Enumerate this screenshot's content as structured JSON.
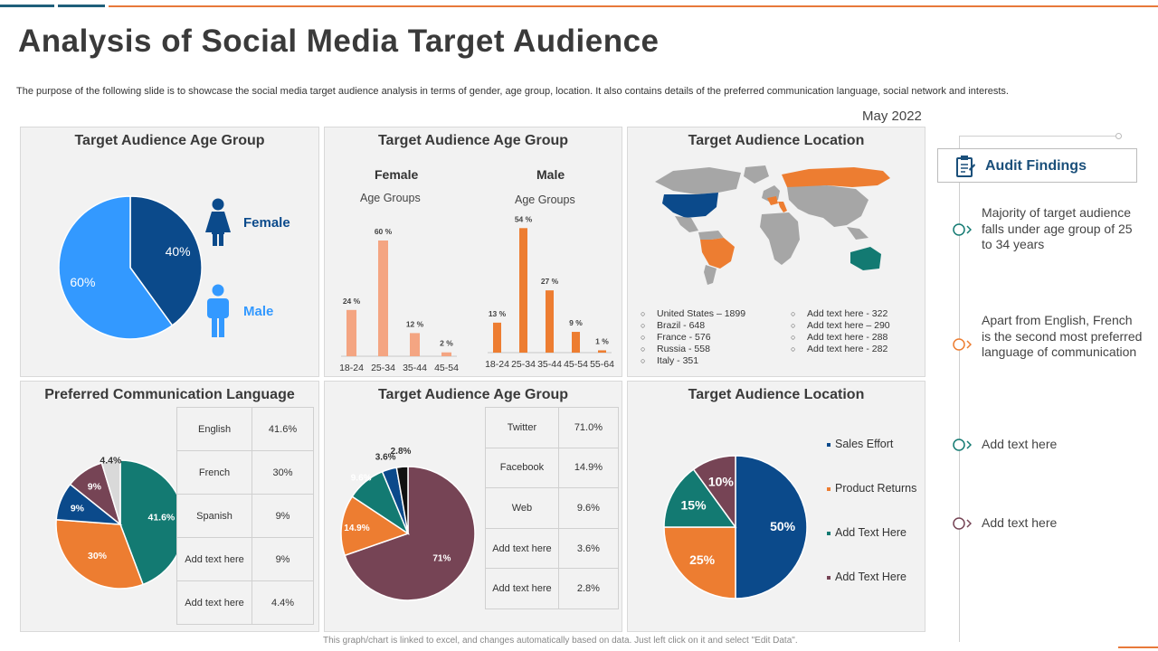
{
  "title": "Analysis of Social Media Target Audience",
  "subtitle": "The purpose of the following slide is to showcase the social media target audience analysis in terms of gender, age group, location. It also contains details of the preferred communication language, social network and interests.",
  "date": "May 2022",
  "footer": "This graph/chart is linked to excel, and changes automatically based on data. Just left click on it and select \"Edit Data\".",
  "colors": {
    "navy": "#0b4a8b",
    "blue": "#3399ff",
    "orange": "#ed7d31",
    "peach": "#f4a582",
    "teal": "#137a72",
    "plum": "#764455",
    "grey": "#d9d9d9",
    "black": "#111111",
    "mapgrey": "#a6a6a6"
  },
  "panels": {
    "gender": {
      "title": "Target Audience Age Group",
      "legend_female": "Female",
      "legend_male": "Male"
    },
    "age": {
      "title": "Target Audience Age Group",
      "female_title": "Female",
      "male_title": "Male",
      "female_sub": "Age Groups",
      "male_sub": "Age Groups"
    },
    "location": {
      "title": "Target Audience Location",
      "col1": [
        "United States – 1899",
        "Brazil - 648",
        "France - 576",
        "Russia - 558",
        "Italy - 351"
      ],
      "col2": [
        "Add text here - 322",
        "Add text here – 290",
        "Add text here - 288",
        "Add text here - 282"
      ]
    },
    "language": {
      "title": "Preferred Communication Language",
      "rows": [
        {
          "label": "English",
          "value": "41.6%"
        },
        {
          "label": "French",
          "value": "30%"
        },
        {
          "label": "Spanish",
          "value": "9%"
        },
        {
          "label": "Add text here",
          "value": "9%"
        },
        {
          "label": "Add text here",
          "value": "4.4%"
        }
      ]
    },
    "network": {
      "title": "Target Audience Age Group",
      "rows": [
        {
          "label": "Twitter",
          "value": "71.0%"
        },
        {
          "label": "Facebook",
          "value": "14.9%"
        },
        {
          "label": "Web",
          "value": "9.6%"
        },
        {
          "label": "Add text here",
          "value": "3.6%"
        },
        {
          "label": "Add text here",
          "value": "2.8%"
        }
      ]
    },
    "location2": {
      "title": "Target Audience Location",
      "legend": [
        "Sales Effort",
        "Product Returns",
        "Add Text Here",
        "Add Text Here"
      ]
    }
  },
  "audit": {
    "title": "Audit Findings",
    "findings": [
      "Majority of target audience falls under age group of 25 to 34 years",
      "Apart from English, French is the second most preferred language of communication",
      "Add text here",
      "Add text here"
    ]
  },
  "chart_data": [
    {
      "type": "pie",
      "title": "Target Audience Age Group",
      "categories": [
        "Female",
        "Male"
      ],
      "values": [
        40,
        60
      ],
      "labels": [
        "40%",
        "60%"
      ],
      "colors": [
        "#0b4a8b",
        "#3399ff"
      ]
    },
    {
      "type": "bar",
      "title": "Female",
      "xlabel": "Age Groups",
      "categories": [
        "18-24",
        "25-34",
        "35-44",
        "45-54"
      ],
      "values": [
        24,
        60,
        12,
        2
      ],
      "labels": [
        "24 %",
        "60 %",
        "12 %",
        "2 %"
      ],
      "color": "#f4a582",
      "ylim": [
        0,
        60
      ]
    },
    {
      "type": "bar",
      "title": "Male",
      "xlabel": "Age Groups",
      "categories": [
        "18-24",
        "25-34",
        "35-44",
        "45-54",
        "55-64"
      ],
      "values": [
        13,
        54,
        27,
        9,
        1
      ],
      "labels": [
        "13 %",
        "54 %",
        "27 %",
        "9 %",
        "1 %"
      ],
      "color": "#ed7d31",
      "ylim": [
        0,
        60
      ]
    },
    {
      "type": "pie",
      "title": "Preferred Communication Language",
      "categories": [
        "English",
        "French",
        "Spanish",
        "Add text here",
        "Add text here"
      ],
      "values": [
        41.6,
        30,
        9,
        9,
        4.4
      ],
      "labels": [
        "41.6%",
        "30%",
        "9%",
        "9%",
        "4.4%"
      ],
      "colors": [
        "#137a72",
        "#ed7d31",
        "#0b4a8b",
        "#764455",
        "#d9d9d9"
      ]
    },
    {
      "type": "pie",
      "title": "Target Audience Age Group",
      "categories": [
        "Twitter",
        "Facebook",
        "Web",
        "Add text here",
        "Add text here"
      ],
      "values": [
        71,
        14.9,
        9.6,
        3.6,
        2.8
      ],
      "labels": [
        "71%",
        "14.9%",
        "9.6%",
        "3.6%",
        "2.8%"
      ],
      "colors": [
        "#764455",
        "#ed7d31",
        "#137a72",
        "#0b4a8b",
        "#111111"
      ]
    },
    {
      "type": "pie",
      "title": "Target Audience Location",
      "categories": [
        "Sales Effort",
        "Product Returns",
        "Add Text Here",
        "Add Text Here"
      ],
      "values": [
        50,
        25,
        15,
        10
      ],
      "labels": [
        "50%",
        "25%",
        "15%",
        "10%"
      ],
      "colors": [
        "#0b4a8b",
        "#ed7d31",
        "#137a72",
        "#764455"
      ]
    }
  ]
}
